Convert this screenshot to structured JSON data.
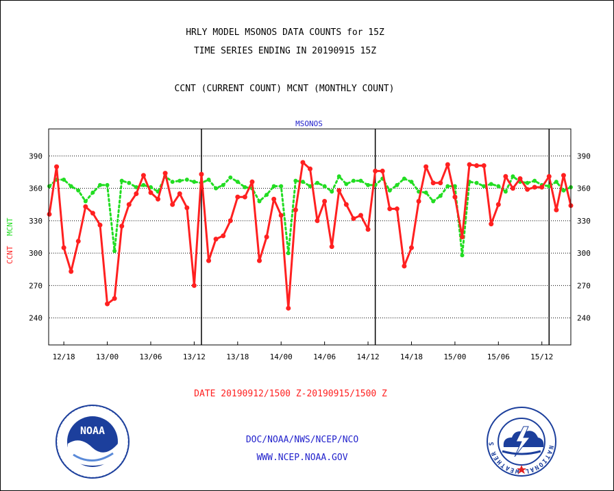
{
  "header": {
    "title_line1": "HRLY MODEL MSONOS DATA COUNTS for 15Z",
    "title_line2": "TIME SERIES ENDING IN 20190915 15Z",
    "subtitle": "CCNT (CURRENT COUNT) MCNT (MONTHLY COUNT)"
  },
  "footer": {
    "date_range": "DATE 20190912/1500 Z-20190915/1500 Z",
    "org": "DOC/NOAA/NWS/NCEP/NCO",
    "url": "WWW.NCEP.NOAA.GOV"
  },
  "logos": {
    "noaa_text": "NOAA",
    "nws_ring": "NATIONAL WEATHER SERVICE"
  },
  "colors": {
    "ccnt": "#ff2020",
    "mcnt": "#22dd22",
    "plot_title": "#2222cc",
    "footer_blue": "#2222cc",
    "date_red": "#ff2020"
  },
  "chart_data": {
    "type": "line",
    "title": "MSONOS",
    "ylabel_left": {
      "ccnt": "CCNT",
      "mcnt": "MCNT"
    },
    "ylim": [
      215,
      415
    ],
    "yticks": [
      240,
      270,
      300,
      330,
      360,
      390
    ],
    "ytick_labels": [
      "240",
      "270",
      "300",
      "330",
      "360",
      "390"
    ],
    "xlim": [
      0,
      72
    ],
    "x_ticks": [
      {
        "x": 2,
        "label": "12/18"
      },
      {
        "x": 8,
        "label": "13/00"
      },
      {
        "x": 14,
        "label": "13/06"
      },
      {
        "x": 20,
        "label": "13/12"
      },
      {
        "x": 26,
        "label": "13/18"
      },
      {
        "x": 32,
        "label": "14/00"
      },
      {
        "x": 38,
        "label": "14/06"
      },
      {
        "x": 44,
        "label": "14/12"
      },
      {
        "x": 50,
        "label": "14/18"
      },
      {
        "x": 56,
        "label": "15/00"
      },
      {
        "x": 62,
        "label": "15/06"
      },
      {
        "x": 68,
        "label": "15/12"
      }
    ],
    "day_boundaries": [
      21,
      45,
      69
    ],
    "grid": true,
    "series": [
      {
        "name": "CCNT",
        "style": "solid",
        "values": [
          336,
          380,
          305,
          283,
          311,
          343,
          337,
          326,
          253,
          258,
          325,
          345,
          355,
          372,
          356,
          350,
          374,
          345,
          355,
          342,
          270,
          373,
          293,
          313,
          316,
          330,
          352,
          352,
          366,
          293,
          315,
          350,
          335,
          249,
          340,
          384,
          378,
          330,
          348,
          306,
          358,
          345,
          332,
          335,
          322,
          376,
          376,
          341,
          341,
          288,
          305,
          348,
          380,
          365,
          365,
          382,
          352,
          315,
          382,
          381,
          381,
          327,
          345,
          371,
          360,
          369,
          359,
          361,
          361,
          371,
          340,
          372,
          344
        ]
      },
      {
        "name": "MCNT",
        "style": "dotted",
        "values": [
          362,
          368,
          368,
          362,
          358,
          348,
          356,
          363,
          363,
          302,
          367,
          365,
          361,
          363,
          361,
          357,
          371,
          366,
          367,
          368,
          366,
          365,
          368,
          360,
          363,
          370,
          366,
          361,
          360,
          348,
          354,
          362,
          362,
          300,
          367,
          366,
          362,
          365,
          362,
          357,
          371,
          364,
          367,
          367,
          363,
          363,
          369,
          358,
          363,
          369,
          366,
          357,
          356,
          348,
          353,
          362,
          362,
          298,
          366,
          365,
          362,
          364,
          362,
          357,
          371,
          366,
          365,
          367,
          363,
          362,
          366,
          358,
          361
        ]
      }
    ]
  }
}
